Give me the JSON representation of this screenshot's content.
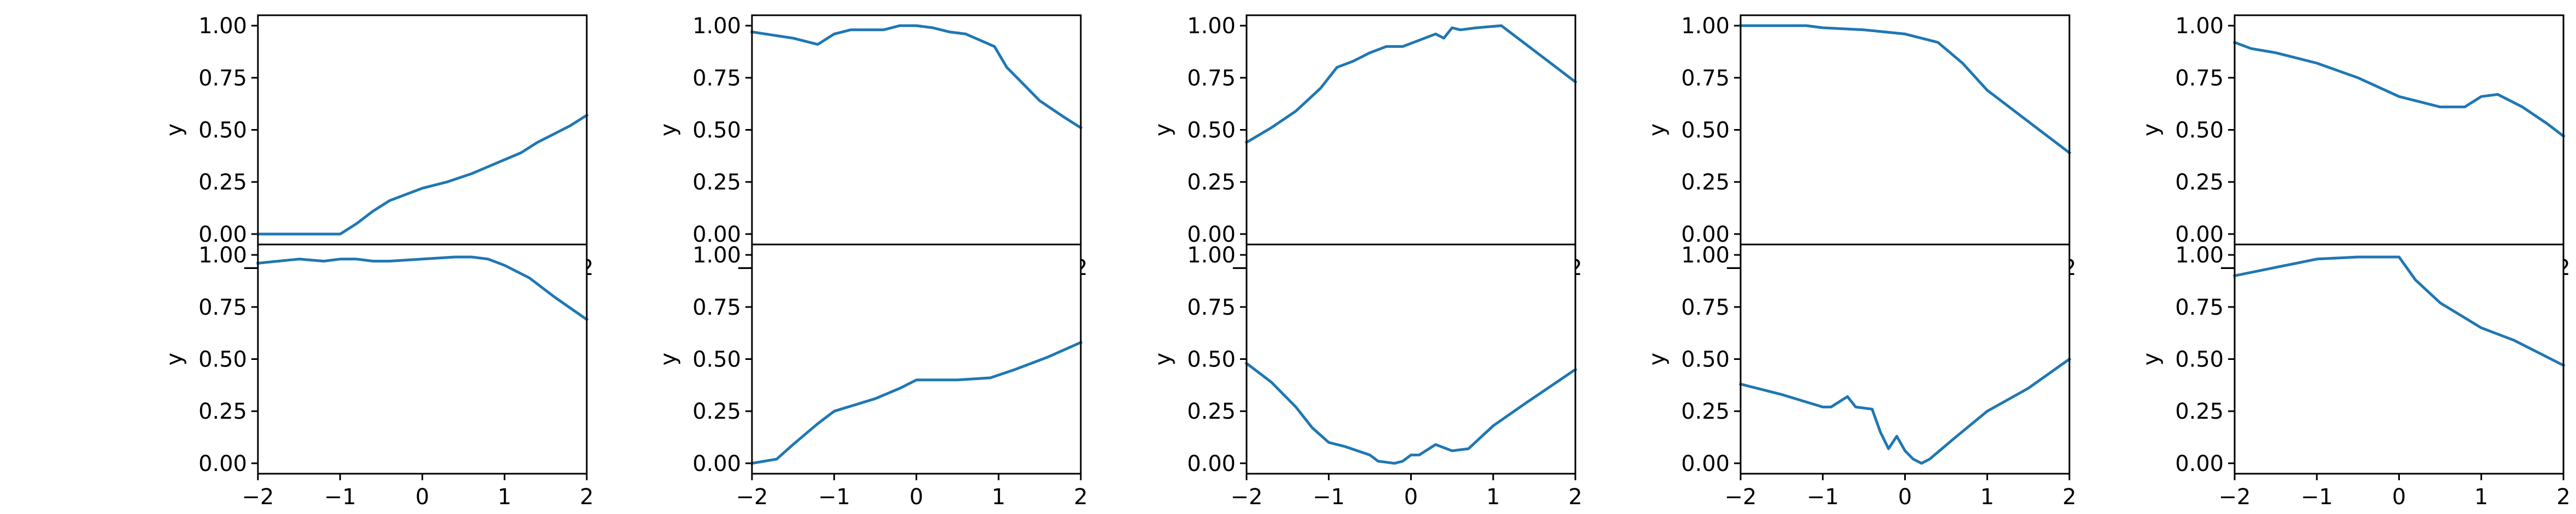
{
  "figure": {
    "background": "#ffffff",
    "line_color": "#1f77b4",
    "axis_color": "#000000"
  },
  "chart_data": [
    {
      "type": "line",
      "row": 0,
      "col": 0,
      "xlim": [
        -2,
        2
      ],
      "ylim": [
        -0.05,
        1.05
      ],
      "xticks": [
        "−2",
        "−1",
        "0",
        "1",
        "2"
      ],
      "yticks": [
        "0.00",
        "0.25",
        "0.50",
        "0.75",
        "1.00"
      ],
      "xlabel": "",
      "ylabel": "y",
      "x": [
        -2,
        -1.5,
        -1.2,
        -1.0,
        -0.8,
        -0.6,
        -0.4,
        -0.2,
        0,
        0.3,
        0.6,
        0.9,
        1.2,
        1.4,
        1.6,
        1.8,
        2.0
      ],
      "y": [
        0.0,
        0.0,
        0.0,
        0.0,
        0.05,
        0.11,
        0.16,
        0.19,
        0.22,
        0.25,
        0.29,
        0.34,
        0.39,
        0.44,
        0.48,
        0.52,
        0.57
      ]
    },
    {
      "type": "line",
      "row": 0,
      "col": 1,
      "xlim": [
        -2,
        2
      ],
      "ylim": [
        -0.05,
        1.05
      ],
      "xticks": [
        "−2",
        "−1",
        "0",
        "1",
        "2"
      ],
      "yticks": [
        "0.00",
        "0.25",
        "0.50",
        "0.75",
        "1.00"
      ],
      "xlabel": "",
      "ylabel": "y",
      "x": [
        -2,
        -1.5,
        -1.2,
        -1.0,
        -0.8,
        -0.6,
        -0.4,
        -0.2,
        0,
        0.2,
        0.4,
        0.6,
        0.95,
        1.1,
        1.3,
        1.5,
        1.8,
        2.0
      ],
      "y": [
        0.97,
        0.94,
        0.91,
        0.96,
        0.98,
        0.98,
        0.98,
        1.0,
        1.0,
        0.99,
        0.97,
        0.96,
        0.9,
        0.8,
        0.72,
        0.64,
        0.56,
        0.51
      ]
    },
    {
      "type": "line",
      "row": 0,
      "col": 2,
      "xlim": [
        -2,
        2
      ],
      "ylim": [
        -0.05,
        1.05
      ],
      "xticks": [
        "−2",
        "−1",
        "0",
        "1",
        "2"
      ],
      "yticks": [
        "0.00",
        "0.25",
        "0.50",
        "0.75",
        "1.00"
      ],
      "xlabel": "",
      "ylabel": "y",
      "x": [
        -2,
        -1.7,
        -1.4,
        -1.1,
        -0.9,
        -0.7,
        -0.5,
        -0.3,
        -0.1,
        0.1,
        0.3,
        0.4,
        0.5,
        0.6,
        0.8,
        1.1,
        1.4,
        1.7,
        2.0
      ],
      "y": [
        0.44,
        0.51,
        0.59,
        0.7,
        0.8,
        0.83,
        0.87,
        0.9,
        0.9,
        0.93,
        0.96,
        0.94,
        0.99,
        0.98,
        0.99,
        1.0,
        0.91,
        0.82,
        0.73
      ]
    },
    {
      "type": "line",
      "row": 0,
      "col": 3,
      "xlim": [
        -2,
        2
      ],
      "ylim": [
        -0.05,
        1.05
      ],
      "xticks": [
        "−2",
        "−1",
        "0",
        "1",
        "2"
      ],
      "yticks": [
        "0.00",
        "0.25",
        "0.50",
        "0.75",
        "1.00"
      ],
      "xlabel": "",
      "ylabel": "y",
      "x": [
        -2,
        -1.5,
        -1.2,
        -1.0,
        -0.5,
        0.0,
        0.4,
        0.7,
        1.0,
        1.3,
        1.7,
        2.0
      ],
      "y": [
        1.0,
        1.0,
        1.0,
        0.99,
        0.98,
        0.96,
        0.92,
        0.82,
        0.69,
        0.6,
        0.48,
        0.39
      ]
    },
    {
      "type": "line",
      "row": 0,
      "col": 4,
      "xlim": [
        -2,
        2
      ],
      "ylim": [
        -0.05,
        1.05
      ],
      "xticks": [
        "−2",
        "−1",
        "0",
        "1",
        "2"
      ],
      "yticks": [
        "0.00",
        "0.25",
        "0.50",
        "0.75",
        "1.00"
      ],
      "xlabel": "",
      "ylabel": "y",
      "x": [
        -2,
        -1.8,
        -1.5,
        -1.0,
        -0.5,
        0.0,
        0.2,
        0.5,
        0.8,
        1.0,
        1.2,
        1.5,
        1.8,
        2.0
      ],
      "y": [
        0.92,
        0.89,
        0.87,
        0.82,
        0.75,
        0.66,
        0.64,
        0.61,
        0.61,
        0.66,
        0.67,
        0.61,
        0.53,
        0.47
      ]
    },
    {
      "type": "line",
      "row": 1,
      "col": 0,
      "xlim": [
        -2,
        2
      ],
      "ylim": [
        -0.05,
        1.05
      ],
      "xticks": [
        "−2",
        "−1",
        "0",
        "1",
        "2"
      ],
      "yticks": [
        "0.00",
        "0.25",
        "0.50",
        "0.75",
        "1.00"
      ],
      "xlabel": "",
      "ylabel": "y",
      "x": [
        -2,
        -1.5,
        -1.2,
        -1.0,
        -0.8,
        -0.6,
        -0.4,
        0.0,
        0.4,
        0.6,
        0.8,
        1.0,
        1.3,
        1.6,
        2.0
      ],
      "y": [
        0.96,
        0.98,
        0.97,
        0.98,
        0.98,
        0.97,
        0.97,
        0.98,
        0.99,
        0.99,
        0.98,
        0.95,
        0.89,
        0.8,
        0.69
      ]
    },
    {
      "type": "line",
      "row": 1,
      "col": 1,
      "xlim": [
        -2,
        2
      ],
      "ylim": [
        -0.05,
        1.05
      ],
      "xticks": [
        "−2",
        "−1",
        "0",
        "1",
        "2"
      ],
      "yticks": [
        "0.00",
        "0.25",
        "0.50",
        "0.75",
        "1.00"
      ],
      "xlabel": "",
      "ylabel": "y",
      "x": [
        -2,
        -1.7,
        -1.5,
        -1.2,
        -1.0,
        -0.5,
        -0.2,
        0.0,
        0.5,
        0.9,
        1.2,
        1.6,
        2.0
      ],
      "y": [
        0.0,
        0.02,
        0.09,
        0.19,
        0.25,
        0.31,
        0.36,
        0.4,
        0.4,
        0.41,
        0.45,
        0.51,
        0.58
      ]
    },
    {
      "type": "line",
      "row": 1,
      "col": 2,
      "xlim": [
        -2,
        2
      ],
      "ylim": [
        -0.05,
        1.05
      ],
      "xticks": [
        "−2",
        "−1",
        "0",
        "1",
        "2"
      ],
      "yticks": [
        "0.00",
        "0.25",
        "0.50",
        "0.75",
        "1.00"
      ],
      "xlabel": "",
      "ylabel": "y",
      "x": [
        -2,
        -1.7,
        -1.4,
        -1.2,
        -1.0,
        -0.8,
        -0.5,
        -0.4,
        -0.2,
        -0.1,
        0.0,
        0.1,
        0.3,
        0.5,
        0.7,
        1.0,
        1.4,
        2.0
      ],
      "y": [
        0.48,
        0.39,
        0.27,
        0.17,
        0.1,
        0.08,
        0.04,
        0.01,
        0.0,
        0.01,
        0.04,
        0.04,
        0.09,
        0.06,
        0.07,
        0.18,
        0.29,
        0.45
      ]
    },
    {
      "type": "line",
      "row": 1,
      "col": 3,
      "xlim": [
        -2,
        2
      ],
      "ylim": [
        -0.05,
        1.05
      ],
      "xticks": [
        "−2",
        "−1",
        "0",
        "1",
        "2"
      ],
      "yticks": [
        "0.00",
        "0.25",
        "0.50",
        "0.75",
        "1.00"
      ],
      "xlabel": "",
      "ylabel": "y",
      "x": [
        -2,
        -1.5,
        -1.0,
        -0.9,
        -0.7,
        -0.6,
        -0.4,
        -0.3,
        -0.2,
        -0.1,
        0.0,
        0.1,
        0.2,
        0.3,
        0.6,
        1.0,
        1.5,
        2.0
      ],
      "y": [
        0.38,
        0.33,
        0.27,
        0.27,
        0.32,
        0.27,
        0.26,
        0.15,
        0.07,
        0.13,
        0.06,
        0.02,
        0.0,
        0.02,
        0.12,
        0.25,
        0.36,
        0.5
      ]
    },
    {
      "type": "line",
      "row": 1,
      "col": 4,
      "xlim": [
        -2,
        2
      ],
      "ylim": [
        -0.05,
        1.05
      ],
      "xticks": [
        "−2",
        "−1",
        "0",
        "1",
        "2"
      ],
      "yticks": [
        "0.00",
        "0.25",
        "0.50",
        "0.75",
        "1.00"
      ],
      "xlabel": "",
      "ylabel": "y",
      "x": [
        -2,
        -1.5,
        -1.0,
        -0.5,
        0.0,
        0.2,
        0.5,
        1.0,
        1.4,
        2.0
      ],
      "y": [
        0.9,
        0.94,
        0.98,
        0.99,
        0.99,
        0.88,
        0.77,
        0.65,
        0.59,
        0.47
      ]
    }
  ]
}
